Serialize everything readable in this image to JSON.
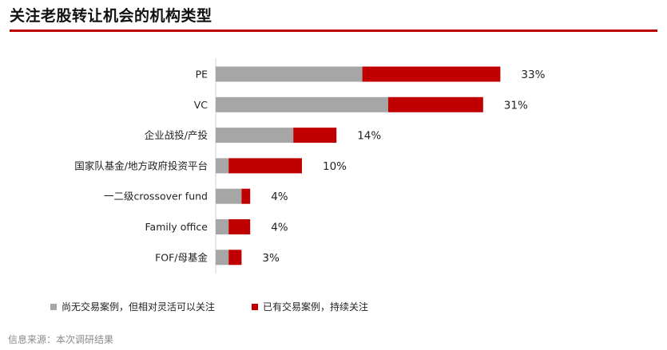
{
  "title": "关注老股转让机会的机构类型",
  "chart_data": {
    "type": "bar",
    "orientation": "horizontal",
    "stacked": true,
    "categories": [
      "PE",
      "VC",
      "企业战投/产投",
      "国家队基金/地方政府投资平台",
      "一二级crossover fund",
      "Family office",
      "FOF/母基金"
    ],
    "series": [
      {
        "name": "尚无交易案例，但相对灵活可以关注",
        "color": "#a6a6a6",
        "values": [
          17,
          20,
          9,
          1.5,
          3,
          1.5,
          1.5
        ]
      },
      {
        "name": "已有交易案例，持续关注",
        "color": "#c00000",
        "values": [
          16,
          11,
          5,
          8.5,
          1,
          2.5,
          1.5
        ]
      }
    ],
    "totals": [
      33,
      31,
      14,
      10,
      4,
      4,
      3
    ],
    "total_labels": [
      "33%",
      "31%",
      "14%",
      "10%",
      "4%",
      "4%",
      "3%"
    ],
    "xlim": [
      0,
      35
    ],
    "legend_position": "bottom",
    "grid": false
  },
  "legend": {
    "items": [
      {
        "label": "尚无交易案例，但相对灵活可以关注",
        "color": "#a6a6a6"
      },
      {
        "label": "已有交易案例，持续关注",
        "color": "#c00000"
      }
    ]
  },
  "source": "信息来源：本次调研结果"
}
